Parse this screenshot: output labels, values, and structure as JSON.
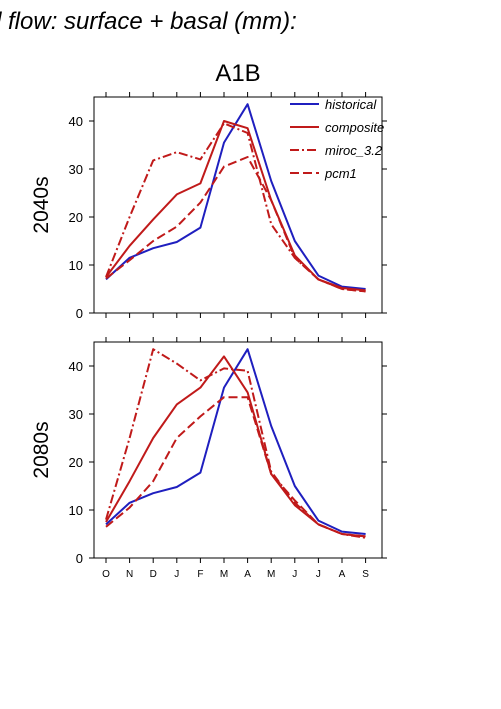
{
  "figure": {
    "title": "d flow: surface + basal (mm):",
    "scenario": "A1B"
  },
  "legend": [
    "historical",
    "composite",
    "miroc_3.2",
    "pcm1"
  ],
  "colors": {
    "historical": "#1f1fbf",
    "scenario": "#c01a1a",
    "axis": "#000000"
  },
  "chart_data": [
    {
      "type": "line",
      "panel_label": "2040s",
      "categories": [
        "O",
        "N",
        "D",
        "J",
        "F",
        "M",
        "A",
        "M",
        "J",
        "J",
        "A",
        "S"
      ],
      "ylim": [
        0,
        45
      ],
      "yticks": [
        0,
        10,
        20,
        30,
        40
      ],
      "legend_position": "top-right",
      "series": [
        {
          "name": "historical",
          "style": "solid",
          "color": "#1f1fbf",
          "values": [
            7.0,
            11.5,
            13.5,
            14.8,
            17.8,
            35.5,
            43.5,
            27.5,
            15.0,
            7.8,
            5.5,
            5.0
          ]
        },
        {
          "name": "composite",
          "style": "solid",
          "color": "#c01a1a",
          "values": [
            7.5,
            14.0,
            19.5,
            24.7,
            27.0,
            40.0,
            38.5,
            23.5,
            12.0,
            7.0,
            5.2,
            4.7
          ]
        },
        {
          "name": "miroc_3.2",
          "style": "dashdot",
          "color": "#c01a1a",
          "values": [
            7.5,
            20.0,
            31.8,
            33.5,
            32.0,
            39.5,
            37.5,
            18.5,
            11.5,
            7.0,
            5.0,
            4.5
          ]
        },
        {
          "name": "pcm1",
          "style": "dashed",
          "color": "#c01a1a",
          "values": [
            7.2,
            11.0,
            15.0,
            18.0,
            23.0,
            30.5,
            32.5,
            23.5,
            11.5,
            7.0,
            5.0,
            4.5
          ]
        }
      ]
    },
    {
      "type": "line",
      "panel_label": "2080s",
      "categories": [
        "O",
        "N",
        "D",
        "J",
        "F",
        "M",
        "A",
        "M",
        "J",
        "J",
        "A",
        "S"
      ],
      "ylim": [
        0,
        45
      ],
      "yticks": [
        0,
        10,
        20,
        30,
        40
      ],
      "series": [
        {
          "name": "historical",
          "style": "solid",
          "color": "#1f1fbf",
          "values": [
            7.0,
            11.5,
            13.5,
            14.8,
            17.8,
            35.5,
            43.5,
            27.5,
            15.0,
            7.8,
            5.5,
            5.0
          ]
        },
        {
          "name": "composite",
          "style": "solid",
          "color": "#c01a1a",
          "values": [
            7.5,
            16.0,
            25.0,
            32.0,
            35.5,
            42.0,
            34.5,
            17.5,
            11.0,
            7.0,
            5.0,
            4.5
          ]
        },
        {
          "name": "miroc_3.2",
          "style": "dashdot",
          "color": "#c01a1a",
          "values": [
            8.0,
            25.0,
            43.5,
            40.5,
            37.0,
            39.5,
            39.0,
            18.0,
            11.5,
            7.0,
            5.0,
            4.2
          ]
        },
        {
          "name": "pcm1",
          "style": "dashed",
          "color": "#c01a1a",
          "values": [
            6.5,
            10.5,
            16.0,
            25.0,
            29.5,
            33.5,
            33.5,
            17.5,
            12.0,
            7.0,
            5.0,
            4.5
          ]
        }
      ]
    }
  ]
}
